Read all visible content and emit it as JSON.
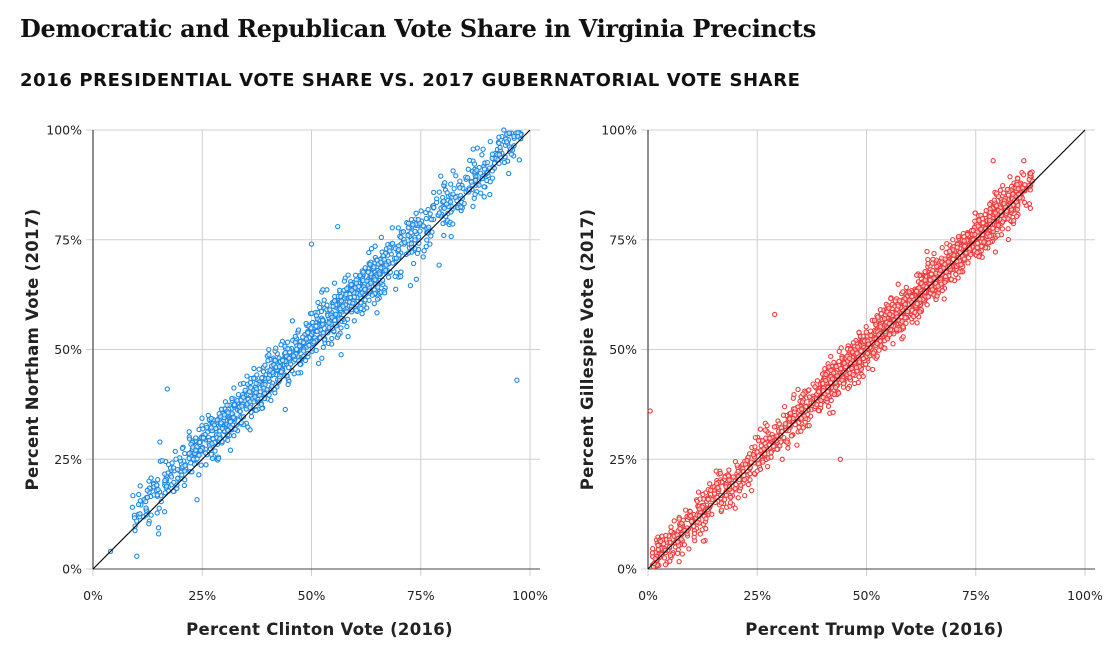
{
  "title": "Democratic and Republican Vote Share in Virginia Precincts",
  "subtitle": "2016 PRESIDENTIAL VOTE SHARE VS. 2017 GUBERNATORIAL VOTE SHARE",
  "chart_data": [
    {
      "type": "scatter",
      "xlabel": "Percent Clinton Vote (2016)",
      "ylabel": "Percent Northam Vote (2017)",
      "xlim": [
        0,
        100
      ],
      "ylim": [
        0,
        100
      ],
      "x_ticks": [
        "0%",
        "25%",
        "50%",
        "75%",
        "100%"
      ],
      "y_ticks": [
        "0%",
        "25%",
        "50%",
        "75%",
        "100%"
      ],
      "reference_line": "y = x",
      "grid": true,
      "color": "#1e88e5",
      "point_count": 1300,
      "trend": {
        "slope": 0.98,
        "intercept": 4.0,
        "x_range": [
          9,
          98
        ]
      },
      "notable_points": [
        {
          "x": 4,
          "y": 4
        },
        {
          "x": 97,
          "y": 43
        },
        {
          "x": 17,
          "y": 41
        },
        {
          "x": 56,
          "y": 78
        },
        {
          "x": 50,
          "y": 74
        },
        {
          "x": 15,
          "y": 8
        },
        {
          "x": 94,
          "y": 100
        },
        {
          "x": 74,
          "y": 66
        }
      ]
    },
    {
      "type": "scatter",
      "xlabel": "Percent Trump Vote (2016)",
      "ylabel": "Percent Gillespie Vote (2017)",
      "xlim": [
        0,
        100
      ],
      "ylim": [
        0,
        100
      ],
      "x_ticks": [
        "0%",
        "25%",
        "50%",
        "75%",
        "100%"
      ],
      "y_ticks": [
        "0%",
        "25%",
        "50%",
        "75%",
        "100%"
      ],
      "reference_line": "y = x",
      "grid": true,
      "color": "#f03c3c",
      "point_count": 2200,
      "trend": {
        "slope": 1.0,
        "intercept": 0.5,
        "x_range": [
          1,
          88
        ]
      },
      "notable_points": [
        {
          "x": 0.5,
          "y": 36
        },
        {
          "x": 29,
          "y": 58
        },
        {
          "x": 44,
          "y": 25
        },
        {
          "x": 4,
          "y": 1
        },
        {
          "x": 79,
          "y": 93
        },
        {
          "x": 86,
          "y": 93
        }
      ]
    }
  ]
}
